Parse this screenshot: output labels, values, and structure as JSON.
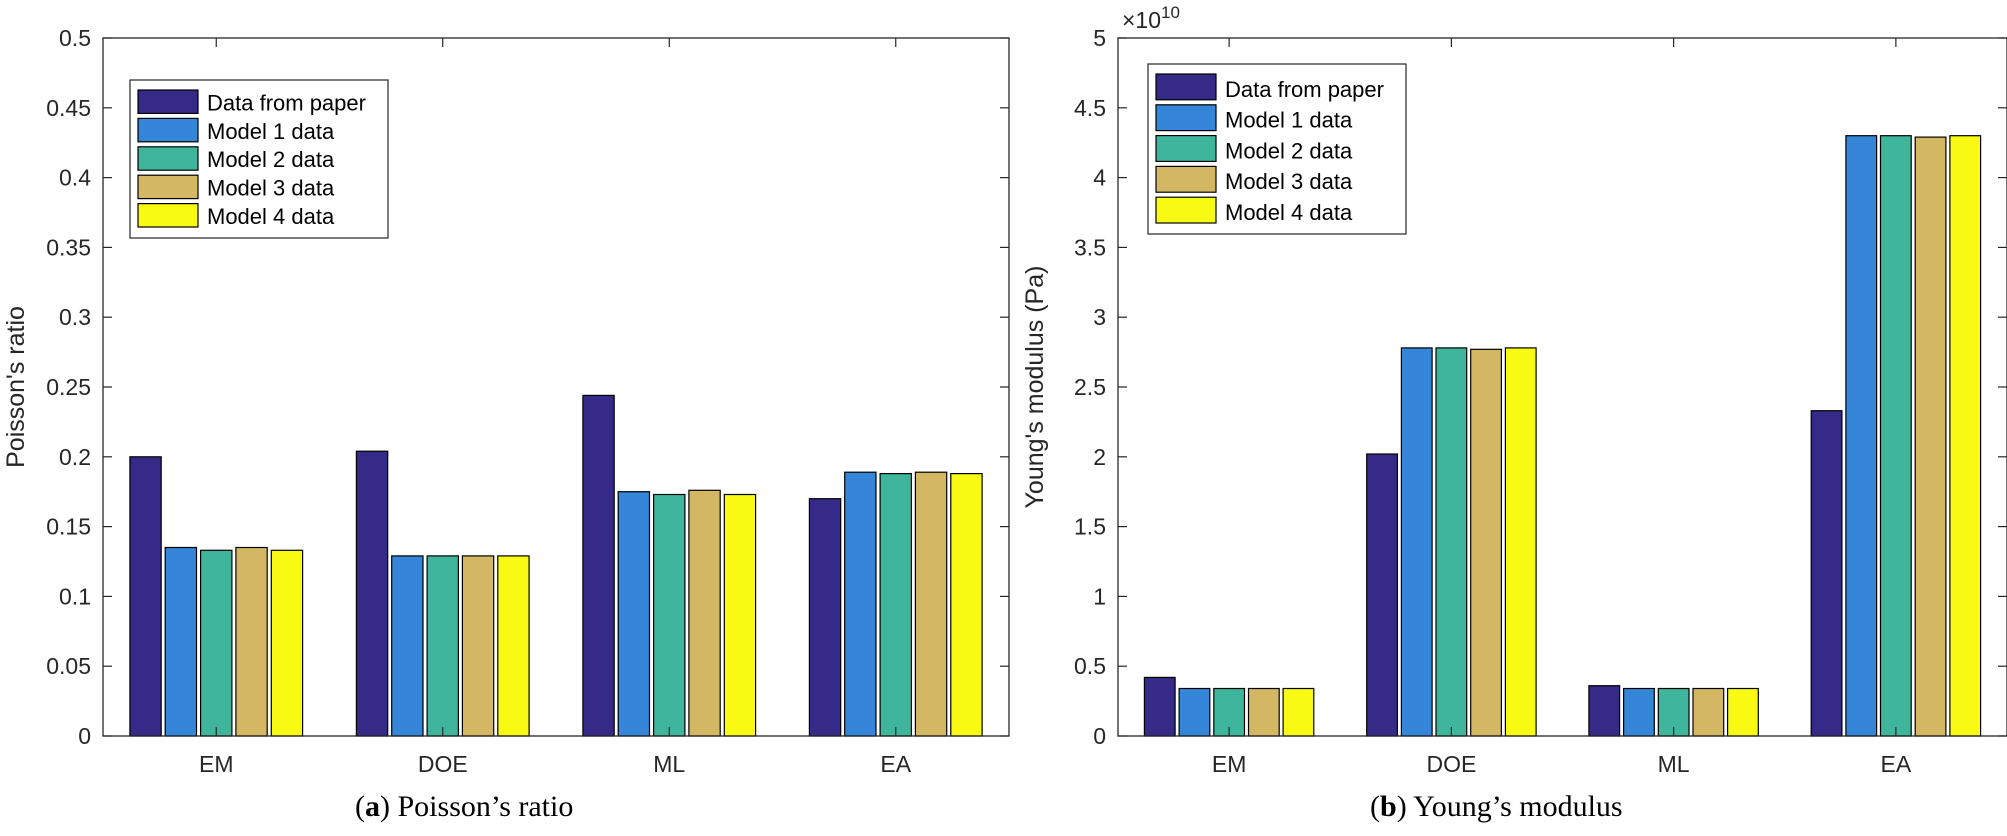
{
  "colors": {
    "series": [
      "#352a87",
      "#3585d8",
      "#3fb69c",
      "#d4b763",
      "#f9fa14"
    ],
    "axis": "#262626",
    "bar_edge": "#000000"
  },
  "captions": {
    "a": {
      "letter": "a",
      "text": " Poisson’s ratio"
    },
    "b": {
      "letter": "b",
      "text": " Young’s modulus"
    }
  },
  "chart_data": [
    {
      "type": "bar",
      "categories": [
        "EM",
        "DOE",
        "ML",
        "EA"
      ],
      "series": [
        {
          "name": "Data from paper",
          "values": [
            0.2,
            0.204,
            0.244,
            0.17
          ]
        },
        {
          "name": "Model 1 data",
          "values": [
            0.135,
            0.129,
            0.175,
            0.189
          ]
        },
        {
          "name": "Model 2 data",
          "values": [
            0.133,
            0.129,
            0.173,
            0.188
          ]
        },
        {
          "name": "Model 3 data",
          "values": [
            0.135,
            0.129,
            0.176,
            0.189
          ]
        },
        {
          "name": "Model 4 data",
          "values": [
            0.133,
            0.129,
            0.173,
            0.188
          ]
        }
      ],
      "title": "",
      "xlabel": "",
      "ylabel": "Poisson's ratio",
      "ylim": [
        0,
        0.5
      ],
      "yticks": [
        0,
        0.05,
        0.1,
        0.15,
        0.2,
        0.25,
        0.3,
        0.35,
        0.4,
        0.45,
        0.5
      ],
      "ytick_labels": [
        "0",
        "0.05",
        "0.1",
        "0.15",
        "0.2",
        "0.25",
        "0.3",
        "0.35",
        "0.4",
        "0.45",
        "0.5"
      ],
      "exponent_label": "",
      "grid": false,
      "legend_position": "top-left"
    },
    {
      "type": "bar",
      "categories": [
        "EM",
        "DOE",
        "ML",
        "EA"
      ],
      "series": [
        {
          "name": "Data from paper",
          "values": [
            0.42,
            2.02,
            0.36,
            2.33
          ]
        },
        {
          "name": "Model 1 data",
          "values": [
            0.34,
            2.78,
            0.34,
            4.3
          ]
        },
        {
          "name": "Model 2 data",
          "values": [
            0.34,
            2.78,
            0.34,
            4.3
          ]
        },
        {
          "name": "Model 3 data",
          "values": [
            0.34,
            2.77,
            0.34,
            4.29
          ]
        },
        {
          "name": "Model 4 data",
          "values": [
            0.34,
            2.78,
            0.34,
            4.3
          ]
        }
      ],
      "title": "",
      "xlabel": "",
      "ylabel": "Young's modulus  (Pa)",
      "ylim": [
        0,
        5
      ],
      "yticks": [
        0,
        0.5,
        1,
        1.5,
        2,
        2.5,
        3,
        3.5,
        4,
        4.5,
        5
      ],
      "ytick_labels": [
        "0",
        "0.5",
        "1",
        "1.5",
        "2",
        "2.5",
        "3",
        "3.5",
        "4",
        "4.5",
        "5"
      ],
      "exponent_label": "×10",
      "exponent_power": "10",
      "grid": false,
      "legend_position": "top-left"
    }
  ]
}
